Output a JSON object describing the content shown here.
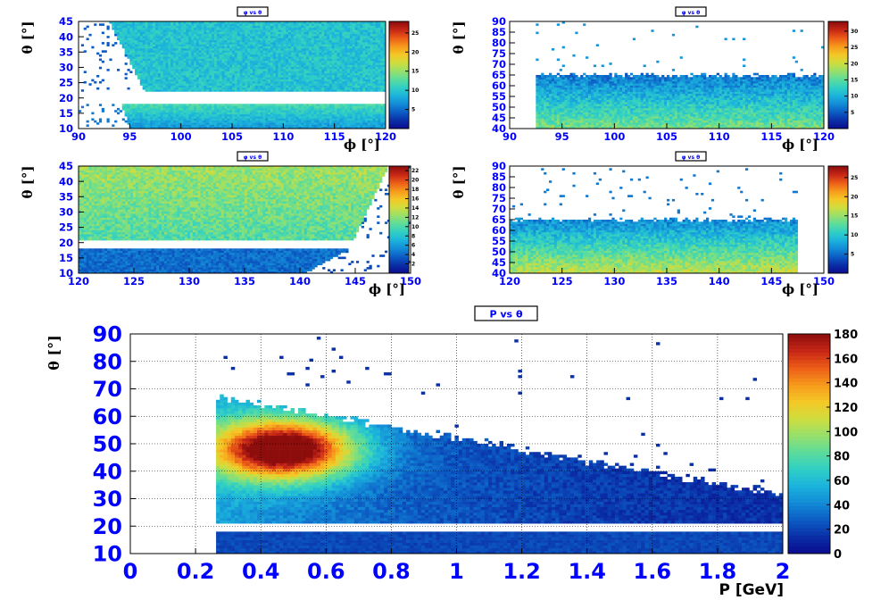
{
  "colors": {
    "tick_label": "#0000ff",
    "axis_title": "#000000",
    "title_text": "#0000ff",
    "frame": "#000000",
    "grid": "#000000",
    "palette": [
      "#0b0b8e",
      "#0a2ea6",
      "#0c5cc4",
      "#138bd6",
      "#1bb2dc",
      "#2fcfc5",
      "#5cdc9c",
      "#97e06b",
      "#cfdd3e",
      "#f4c826",
      "#f79a1c",
      "#ec5d18",
      "#c72716",
      "#8c0d0c"
    ]
  },
  "panels": [
    {
      "id": "phi-theta-sector1-low",
      "title": "φ vs θ",
      "chart_data": {
        "type": "heatmap",
        "title": "φ vs θ",
        "xlabel": "ϕ [°]",
        "ylabel": "θ [°]",
        "xlim": [
          90,
          120
        ],
        "ylim": [
          10,
          45
        ],
        "x_ticks": [
          "90",
          "95",
          "100",
          "105",
          "110",
          "115",
          "120"
        ],
        "y_ticks": [
          "10",
          "15",
          "20",
          "25",
          "30",
          "35",
          "40",
          "45"
        ],
        "z_ticks": [
          "5",
          "10",
          "15",
          "20",
          "25"
        ],
        "zlim": [
          0,
          28
        ],
        "grid": false,
        "occupancy": {
          "phi_min_top": 93,
          "phi_min_bottom": 95,
          "gap_theta": [
            18,
            22
          ],
          "phi_max": 120,
          "theta_min": 10,
          "theta_max": 45
        },
        "peak_value": 28
      }
    },
    {
      "id": "phi-theta-sector1-high",
      "title": "φ vs θ",
      "chart_data": {
        "type": "heatmap",
        "title": "φ vs θ",
        "xlabel": "ϕ [°]",
        "ylabel": "θ [°]",
        "xlim": [
          90,
          120
        ],
        "ylim": [
          40,
          90
        ],
        "x_ticks": [
          "90",
          "95",
          "100",
          "105",
          "110",
          "115",
          "120"
        ],
        "y_ticks": [
          "40",
          "45",
          "50",
          "55",
          "60",
          "65",
          "70",
          "75",
          "80",
          "85",
          "90"
        ],
        "z_ticks": [
          "5",
          "10",
          "15",
          "20",
          "25",
          "30"
        ],
        "zlim": [
          0,
          33
        ],
        "grid": false,
        "occupancy": {
          "phi_min": 92.5,
          "phi_max": 120,
          "theta_min": 40,
          "theta_edge": 65
        },
        "peak_value": 33
      }
    },
    {
      "id": "phi-theta-sector2-low",
      "title": "φ vs θ",
      "chart_data": {
        "type": "heatmap",
        "title": "φ vs θ",
        "xlabel": "ϕ [°]",
        "ylabel": "θ [°]",
        "xlim": [
          120,
          150
        ],
        "ylim": [
          10,
          45
        ],
        "x_ticks": [
          "120",
          "125",
          "130",
          "135",
          "140",
          "145",
          "150"
        ],
        "y_ticks": [
          "10",
          "15",
          "20",
          "25",
          "30",
          "35",
          "40",
          "45"
        ],
        "z_ticks": [
          "2",
          "4",
          "6",
          "8",
          "10",
          "12",
          "14",
          "16",
          "18",
          "20",
          "22"
        ],
        "zlim": [
          0,
          23
        ],
        "grid": false,
        "occupancy": {
          "phi_min": 120,
          "phi_max_top": 147,
          "phi_max_bottom": 144,
          "gap_theta": [
            18,
            21
          ],
          "theta_min": 10,
          "theta_max": 45
        },
        "peak_value": 23
      }
    },
    {
      "id": "phi-theta-sector2-high",
      "title": "φ vs θ",
      "chart_data": {
        "type": "heatmap",
        "title": "φ vs θ",
        "xlabel": "ϕ [°]",
        "ylabel": "θ [°]",
        "xlim": [
          120,
          150
        ],
        "ylim": [
          40,
          90
        ],
        "x_ticks": [
          "120",
          "125",
          "130",
          "135",
          "140",
          "145",
          "150"
        ],
        "y_ticks": [
          "40",
          "45",
          "50",
          "55",
          "60",
          "65",
          "70",
          "75",
          "80",
          "85",
          "90"
        ],
        "z_ticks": [
          "5",
          "10",
          "15",
          "20",
          "25"
        ],
        "zlim": [
          0,
          28
        ],
        "grid": false,
        "occupancy": {
          "phi_min": 120,
          "phi_max": 147.5,
          "theta_min": 40,
          "theta_edge": 65
        },
        "peak_value": 28
      }
    },
    {
      "id": "p-theta",
      "title": "P vs  θ",
      "chart_data": {
        "type": "heatmap",
        "title": "P vs  θ",
        "xlabel": "P [GeV]",
        "ylabel": "θ [°]",
        "xlim": [
          0,
          2
        ],
        "ylim": [
          10,
          90
        ],
        "x_ticks": [
          "0",
          "0.2",
          "0.4",
          "0.6",
          "0.8",
          "1",
          "1.2",
          "1.4",
          "1.6",
          "1.8",
          "2"
        ],
        "y_ticks": [
          "10",
          "20",
          "30",
          "40",
          "50",
          "60",
          "70",
          "80",
          "90"
        ],
        "z_ticks": [
          "0",
          "20",
          "40",
          "60",
          "80",
          "100",
          "120",
          "140",
          "160",
          "180"
        ],
        "zlim": [
          0,
          180
        ],
        "grid": true,
        "occupancy": {
          "p_min": 0.26,
          "p_max": 2.0,
          "gap_theta": [
            18,
            21
          ],
          "hot_spot_p": 0.47,
          "hot_spot_theta": 48,
          "upper_edge_at_p_min": 66,
          "upper_edge_at_p_max": 31
        },
        "peak_value": 180
      }
    }
  ]
}
